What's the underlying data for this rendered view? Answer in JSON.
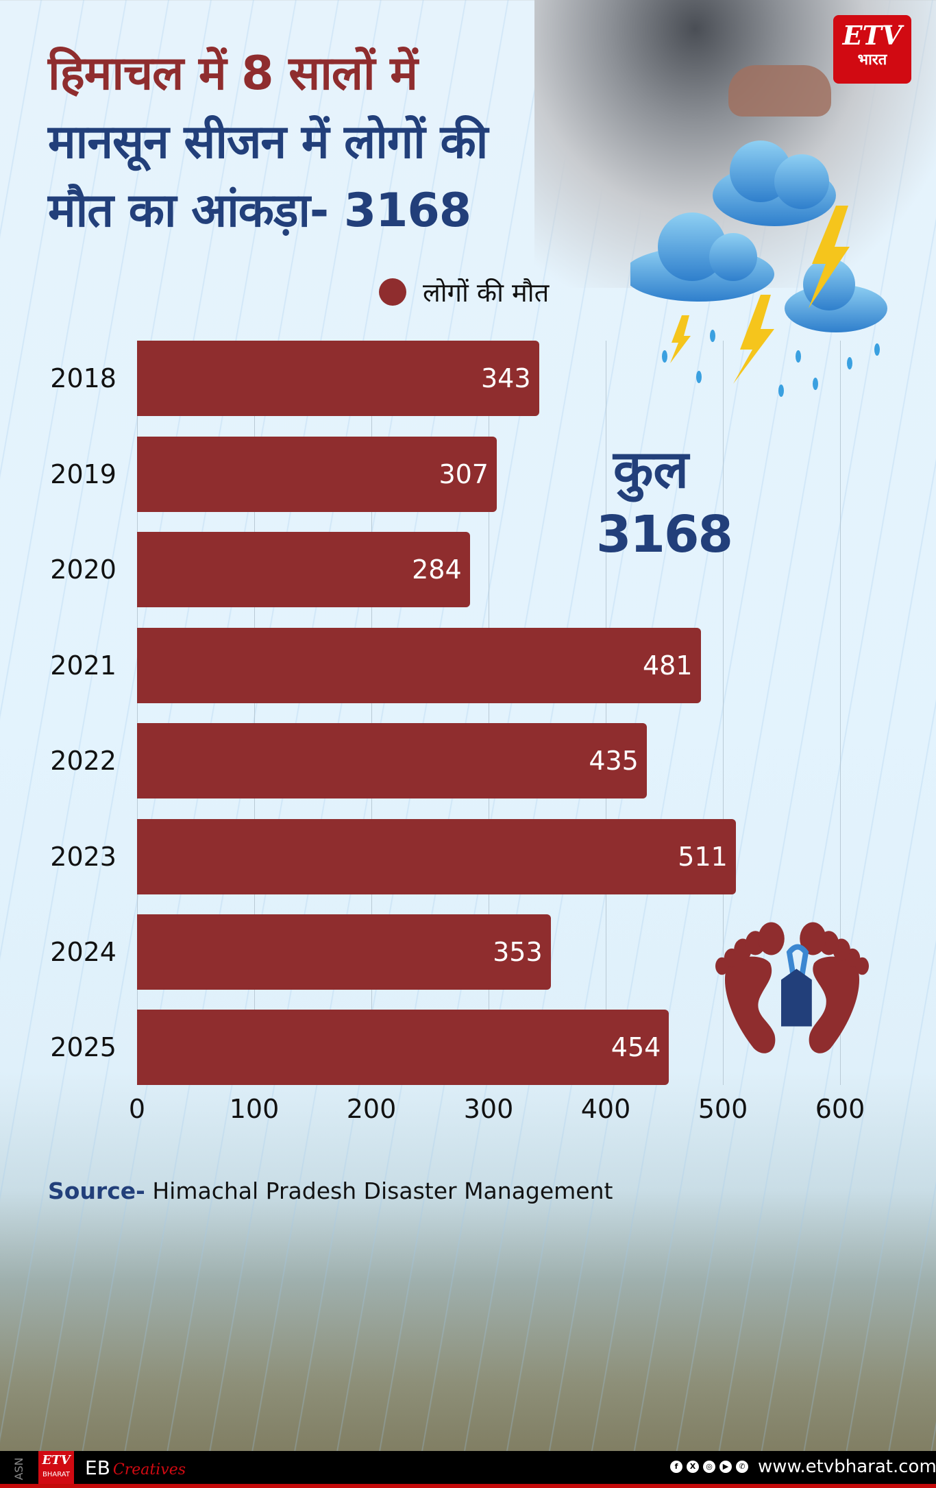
{
  "title": {
    "line1": "हिमाचल में 8 सालों में",
    "line2": "मानसून सीजन में लोगों की",
    "line3": "मौत का आंकड़ा- 3168"
  },
  "brand": {
    "logo_etv": "ETV",
    "logo_bharat": "भारत",
    "footer_asn": "ASN",
    "footer_logo_etv": "ETV",
    "footer_logo_bharat": "BHARAT",
    "footer_eb": "EB",
    "footer_creatives": "Creatives",
    "website": "www.etvbharat.com",
    "social_icons": [
      "facebook-icon",
      "x-icon",
      "instagram-icon",
      "youtube-icon",
      "whatsapp-icon"
    ],
    "social_glyphs": [
      "f",
      "X",
      "◎",
      "▶",
      "✆"
    ]
  },
  "legend": {
    "label": "लोगों की मौत",
    "color": "#8f2d2e"
  },
  "total": {
    "label": "कुल",
    "value": "3168"
  },
  "source": {
    "prefix": "Source-",
    "text": " Himachal Pradesh Disaster Management"
  },
  "colors": {
    "bar": "#8f2d2e",
    "title_red": "#8f2d2e",
    "title_blue": "#223f7a",
    "background": "#e3f3fd"
  },
  "chart_data": {
    "type": "bar",
    "orientation": "horizontal",
    "title": "हिमाचल में 8 सालों में मानसून सीजन में लोगों की मौत का आंकड़ा- 3168",
    "categories": [
      "2018",
      "2019",
      "2020",
      "2021",
      "2022",
      "2023",
      "2024",
      "2025"
    ],
    "series": [
      {
        "name": "लोगों की मौत",
        "values": [
          343,
          307,
          284,
          481,
          435,
          511,
          353,
          454
        ],
        "color": "#8f2d2e"
      }
    ],
    "value_labels": [
      "343",
      "307",
      "284",
      "481",
      "435",
      "511",
      "353",
      "454"
    ],
    "x_ticks": [
      "0",
      "100",
      "200",
      "300",
      "400",
      "500",
      "600"
    ],
    "xlim": [
      0,
      600
    ],
    "xlabel": "",
    "ylabel": "",
    "grid": true,
    "legend_position": "top",
    "annotation": "कुल 3168",
    "total": 3168
  }
}
